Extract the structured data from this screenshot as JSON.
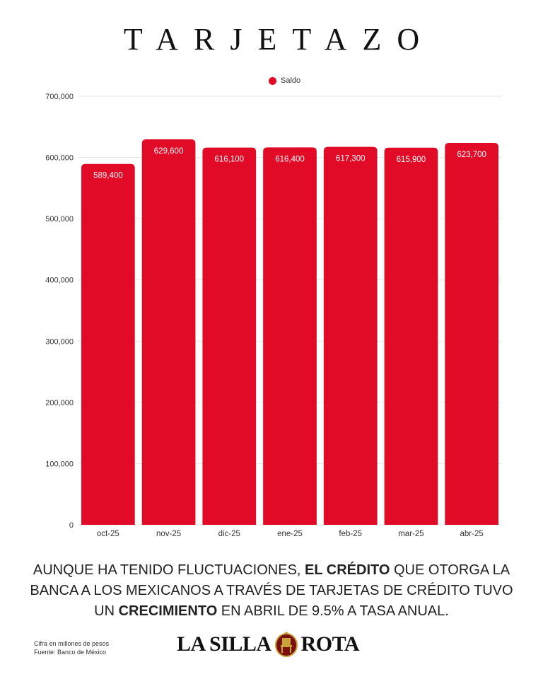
{
  "title": "TARJETAZO",
  "legend": {
    "label": "Saldo",
    "color": "#e10a27"
  },
  "chart_data": {
    "type": "bar",
    "categories": [
      "oct-25",
      "nov-25",
      "dic-25",
      "ene-25",
      "feb-25",
      "mar-25",
      "abr-25"
    ],
    "series": [
      {
        "name": "Saldo",
        "values": [
          589400,
          629600,
          616100,
          616400,
          617300,
          615900,
          623700
        ]
      }
    ],
    "data_labels": [
      "589,400",
      "629,600",
      "616,100",
      "616,400",
      "617,300",
      "615,900",
      "623,700"
    ],
    "y_ticks": [
      0,
      100000,
      200000,
      300000,
      400000,
      500000,
      600000,
      700000
    ],
    "y_tick_labels": [
      "0",
      "100,000",
      "200,000",
      "300,000",
      "400,000",
      "500,000",
      "600,000",
      "700,000"
    ],
    "ylim": [
      0,
      700000
    ],
    "grid": true,
    "legend_position": "top",
    "bar_color": "#e10a27"
  },
  "caption": {
    "part1": "Aunque ha tenido fluctuaciones, ",
    "bold1": "el crédito",
    "part2": " que otorga la banca a los mexicanos a través de tarjetas de crédito tuvo un ",
    "bold2": "crecimiento",
    "part3": " en abril de 9.5% a tasa anual."
  },
  "notes": {
    "units": "Cifra en millones de pesos",
    "source": "Fuente: Banco de México"
  },
  "logo": {
    "left_text": "LA SILLA",
    "right_text": "ROTA",
    "emblem": "chair-seal-icon"
  }
}
